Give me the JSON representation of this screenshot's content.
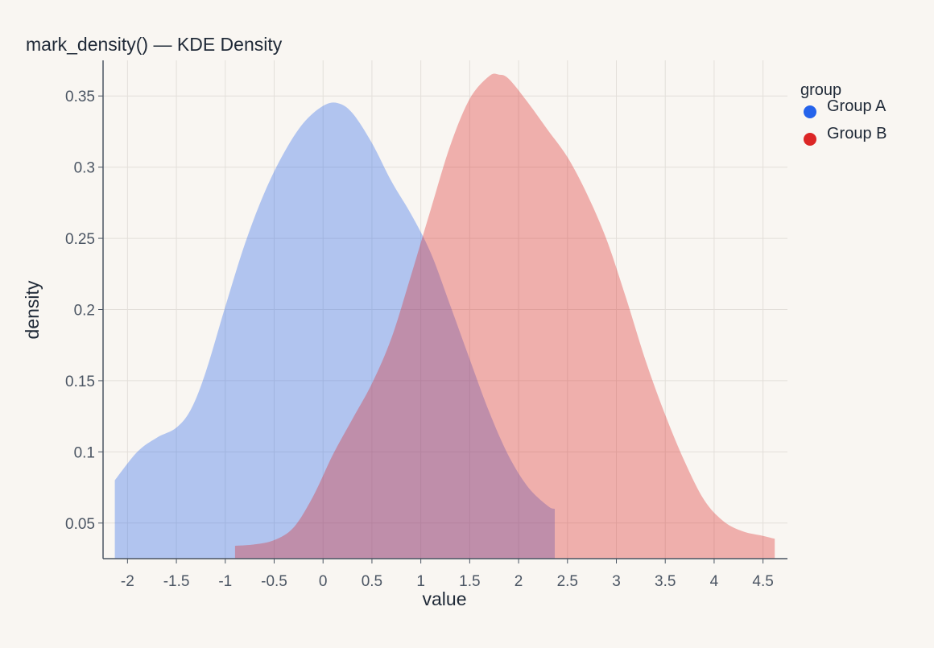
{
  "chart_data": {
    "type": "area",
    "title": "mark_density() — KDE Density",
    "xlabel": "value",
    "ylabel": "density",
    "xlim": [
      -2.25,
      4.75
    ],
    "ylim": [
      0.025,
      0.375
    ],
    "xticks": [
      -2,
      -1.5,
      -1,
      -0.5,
      0,
      0.5,
      1,
      1.5,
      2,
      2.5,
      3,
      3.5,
      4,
      4.5
    ],
    "xtick_labels": [
      "-2",
      "-1.5",
      "-1",
      "-0.5",
      "0",
      "0.5",
      "1",
      "1.5",
      "2",
      "2.5",
      "3",
      "3.5",
      "4",
      "4.5"
    ],
    "yticks": [
      0.05,
      0.1,
      0.15,
      0.2,
      0.25,
      0.3,
      0.35
    ],
    "ytick_labels": [
      "0.05",
      "0.1",
      "0.15",
      "0.2",
      "0.25",
      "0.3",
      "0.35"
    ],
    "grid": true,
    "legend": {
      "title": "group",
      "placement": "right"
    },
    "series": [
      {
        "name": "Group A",
        "color": "#2563eb",
        "fill": "#b0c4ef",
        "x": [
          -2.13,
          -1.9,
          -1.7,
          -1.5,
          -1.35,
          -1.2,
          -1.0,
          -0.8,
          -0.6,
          -0.4,
          -0.2,
          0.0,
          0.15,
          0.3,
          0.5,
          0.7,
          0.9,
          1.1,
          1.3,
          1.5,
          1.7,
          1.9,
          2.1,
          2.3,
          2.37
        ],
        "values": [
          0.08,
          0.1,
          0.11,
          0.117,
          0.13,
          0.156,
          0.202,
          0.246,
          0.282,
          0.31,
          0.331,
          0.343,
          0.345,
          0.338,
          0.317,
          0.29,
          0.267,
          0.24,
          0.203,
          0.165,
          0.128,
          0.097,
          0.075,
          0.062,
          0.06
        ]
      },
      {
        "name": "Group B",
        "color": "#dc2626",
        "fill": "#eeaba6",
        "x": [
          -0.9,
          -0.7,
          -0.5,
          -0.3,
          -0.1,
          0.1,
          0.3,
          0.5,
          0.7,
          0.9,
          1.1,
          1.3,
          1.5,
          1.7,
          1.8,
          1.9,
          2.1,
          2.3,
          2.5,
          2.7,
          2.9,
          3.1,
          3.3,
          3.5,
          3.7,
          3.9,
          4.1,
          4.3,
          4.5,
          4.62
        ],
        "values": [
          0.034,
          0.035,
          0.038,
          0.047,
          0.069,
          0.098,
          0.123,
          0.148,
          0.18,
          0.224,
          0.27,
          0.315,
          0.348,
          0.364,
          0.365,
          0.362,
          0.345,
          0.326,
          0.307,
          0.281,
          0.249,
          0.208,
          0.164,
          0.126,
          0.093,
          0.066,
          0.051,
          0.044,
          0.041,
          0.039
        ]
      }
    ]
  }
}
